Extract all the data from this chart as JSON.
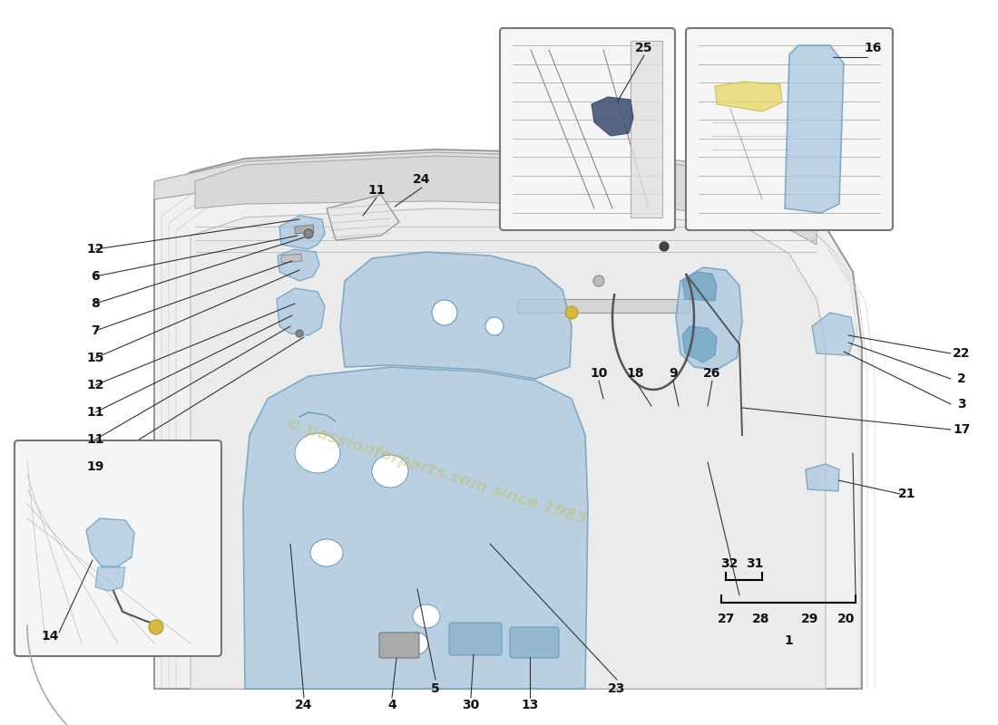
{
  "bg_color": "#ffffff",
  "line_color": "#333333",
  "door_fill": "#f0f0f0",
  "door_edge": "#999999",
  "blue_fill": "#a8c8e0",
  "blue_edge": "#6699bb",
  "blue_alpha": 0.75,
  "dark_line": "#555555",
  "inset_bg": "#f5f5f5",
  "inset_edge": "#777777",
  "wm_color": "#c8b84a",
  "wm_alpha": 0.4,
  "label_fs": 10,
  "label_color": "#111111"
}
